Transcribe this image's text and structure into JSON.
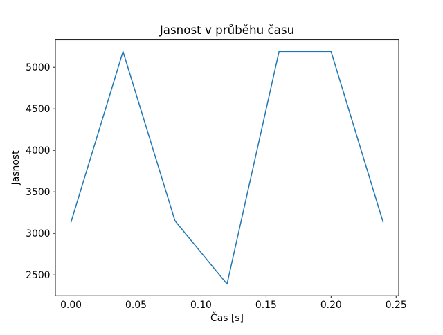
{
  "figure": {
    "background": "#ffffff",
    "axes_edge_color": "#000000",
    "text_color": "#000000"
  },
  "chart_data": {
    "type": "line",
    "title": "Jasnost v průběhu času",
    "xlabel": "Čas [s]",
    "ylabel": "Jasnost",
    "x": [
      0.0,
      0.04,
      0.08,
      0.12,
      0.16,
      0.2,
      0.24
    ],
    "y": [
      3135,
      5190,
      3150,
      2390,
      5190,
      5190,
      3135
    ],
    "x_ticks": [
      0.0,
      0.05,
      0.1,
      0.15,
      0.2,
      0.25
    ],
    "x_tick_labels": [
      "0.00",
      "0.05",
      "0.10",
      "0.15",
      "0.20",
      "0.25"
    ],
    "y_ticks": [
      2500,
      3000,
      3500,
      4000,
      4500,
      5000
    ],
    "y_tick_labels": [
      "2500",
      "3000",
      "3500",
      "4000",
      "4500",
      "5000"
    ],
    "xlim": [
      -0.012,
      0.252
    ],
    "ylim": [
      2250,
      5330
    ],
    "line_color": "#1f77b4",
    "line_width": 1.5,
    "grid": false,
    "legend_position": "none"
  }
}
